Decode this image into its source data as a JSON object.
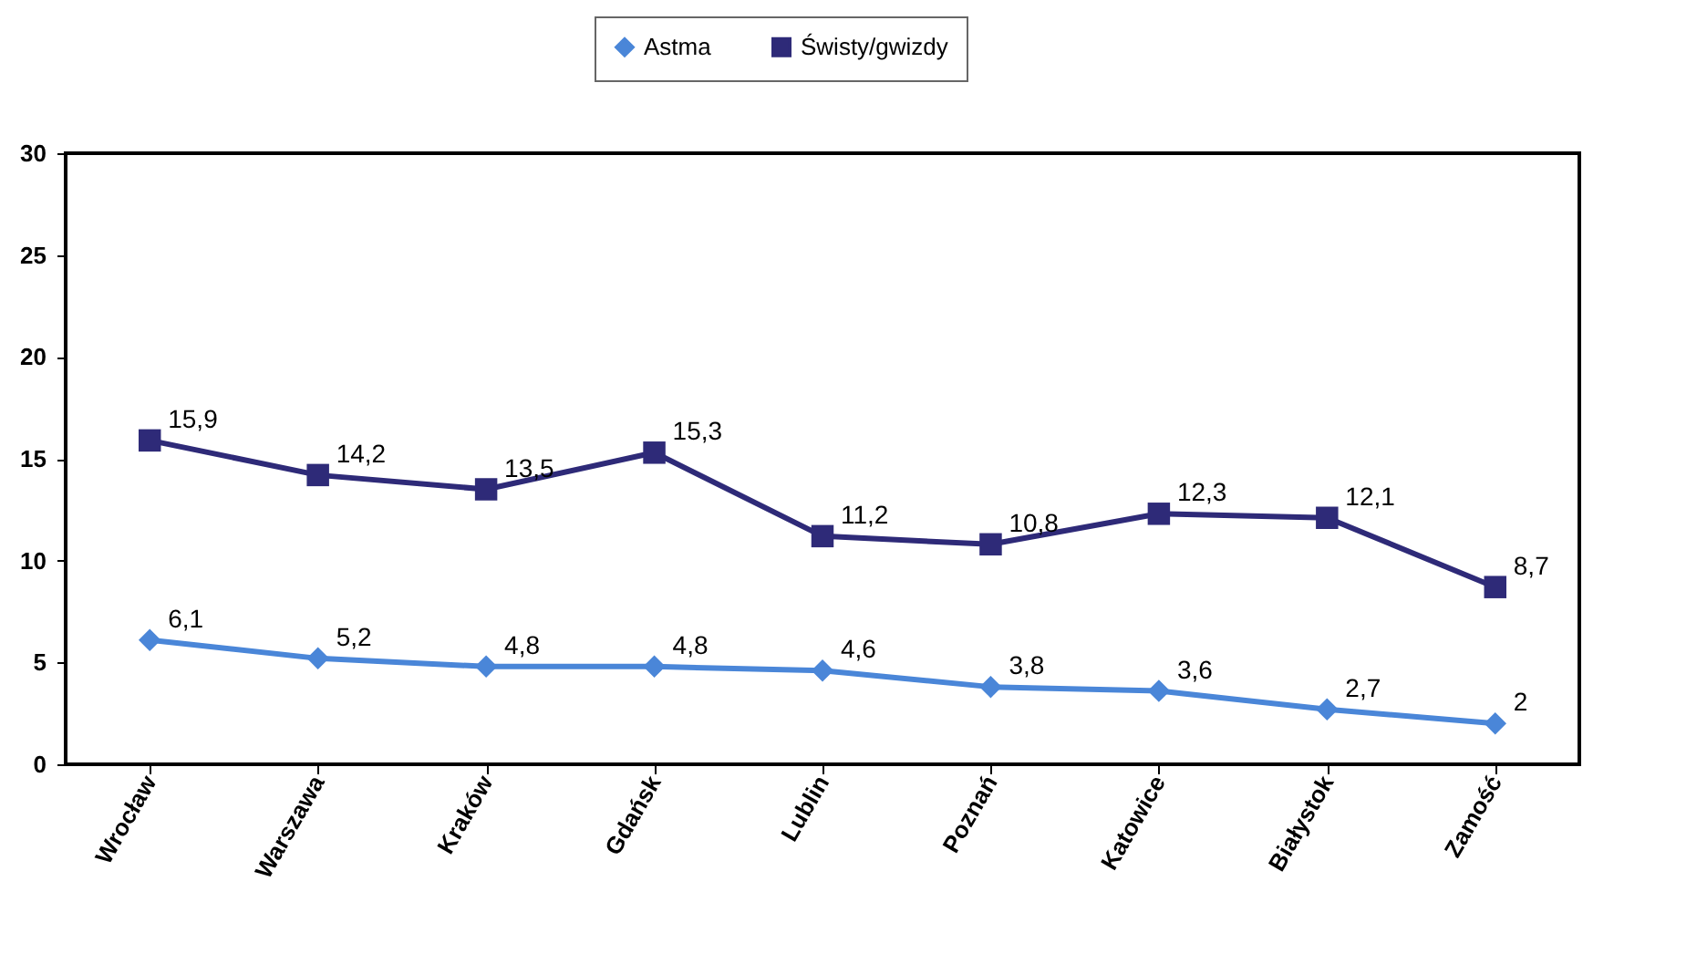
{
  "chart_data": {
    "type": "line",
    "categories": [
      "Wrocław",
      "Warszawa",
      "Kraków",
      "Gdańsk",
      "Lublin",
      "Poznań",
      "Katowice",
      "Białystok",
      "Zamość"
    ],
    "series": [
      {
        "name": "Astma",
        "color": "#4a86d8",
        "marker": "diamond",
        "values": [
          6.1,
          5.2,
          4.8,
          4.8,
          4.6,
          3.8,
          3.6,
          2.7,
          2
        ],
        "value_labels": [
          "6,1",
          "5,2",
          "4,8",
          "4,8",
          "4,6",
          "3,8",
          "3,6",
          "2,7",
          "2"
        ]
      },
      {
        "name": "Świsty/gwizdy",
        "color": "#2e2a78",
        "marker": "square",
        "values": [
          15.9,
          14.2,
          13.5,
          15.3,
          11.2,
          10.8,
          12.3,
          12.1,
          8.7
        ],
        "value_labels": [
          "15,9",
          "14,2",
          "13,5",
          "15,3",
          "11,2",
          "10,8",
          "12,3",
          "12,1",
          "8,7"
        ]
      }
    ],
    "ylim": [
      0,
      30
    ],
    "yticks": [
      0,
      5,
      10,
      15,
      20,
      25,
      30
    ],
    "grid": false,
    "legend": "top"
  }
}
